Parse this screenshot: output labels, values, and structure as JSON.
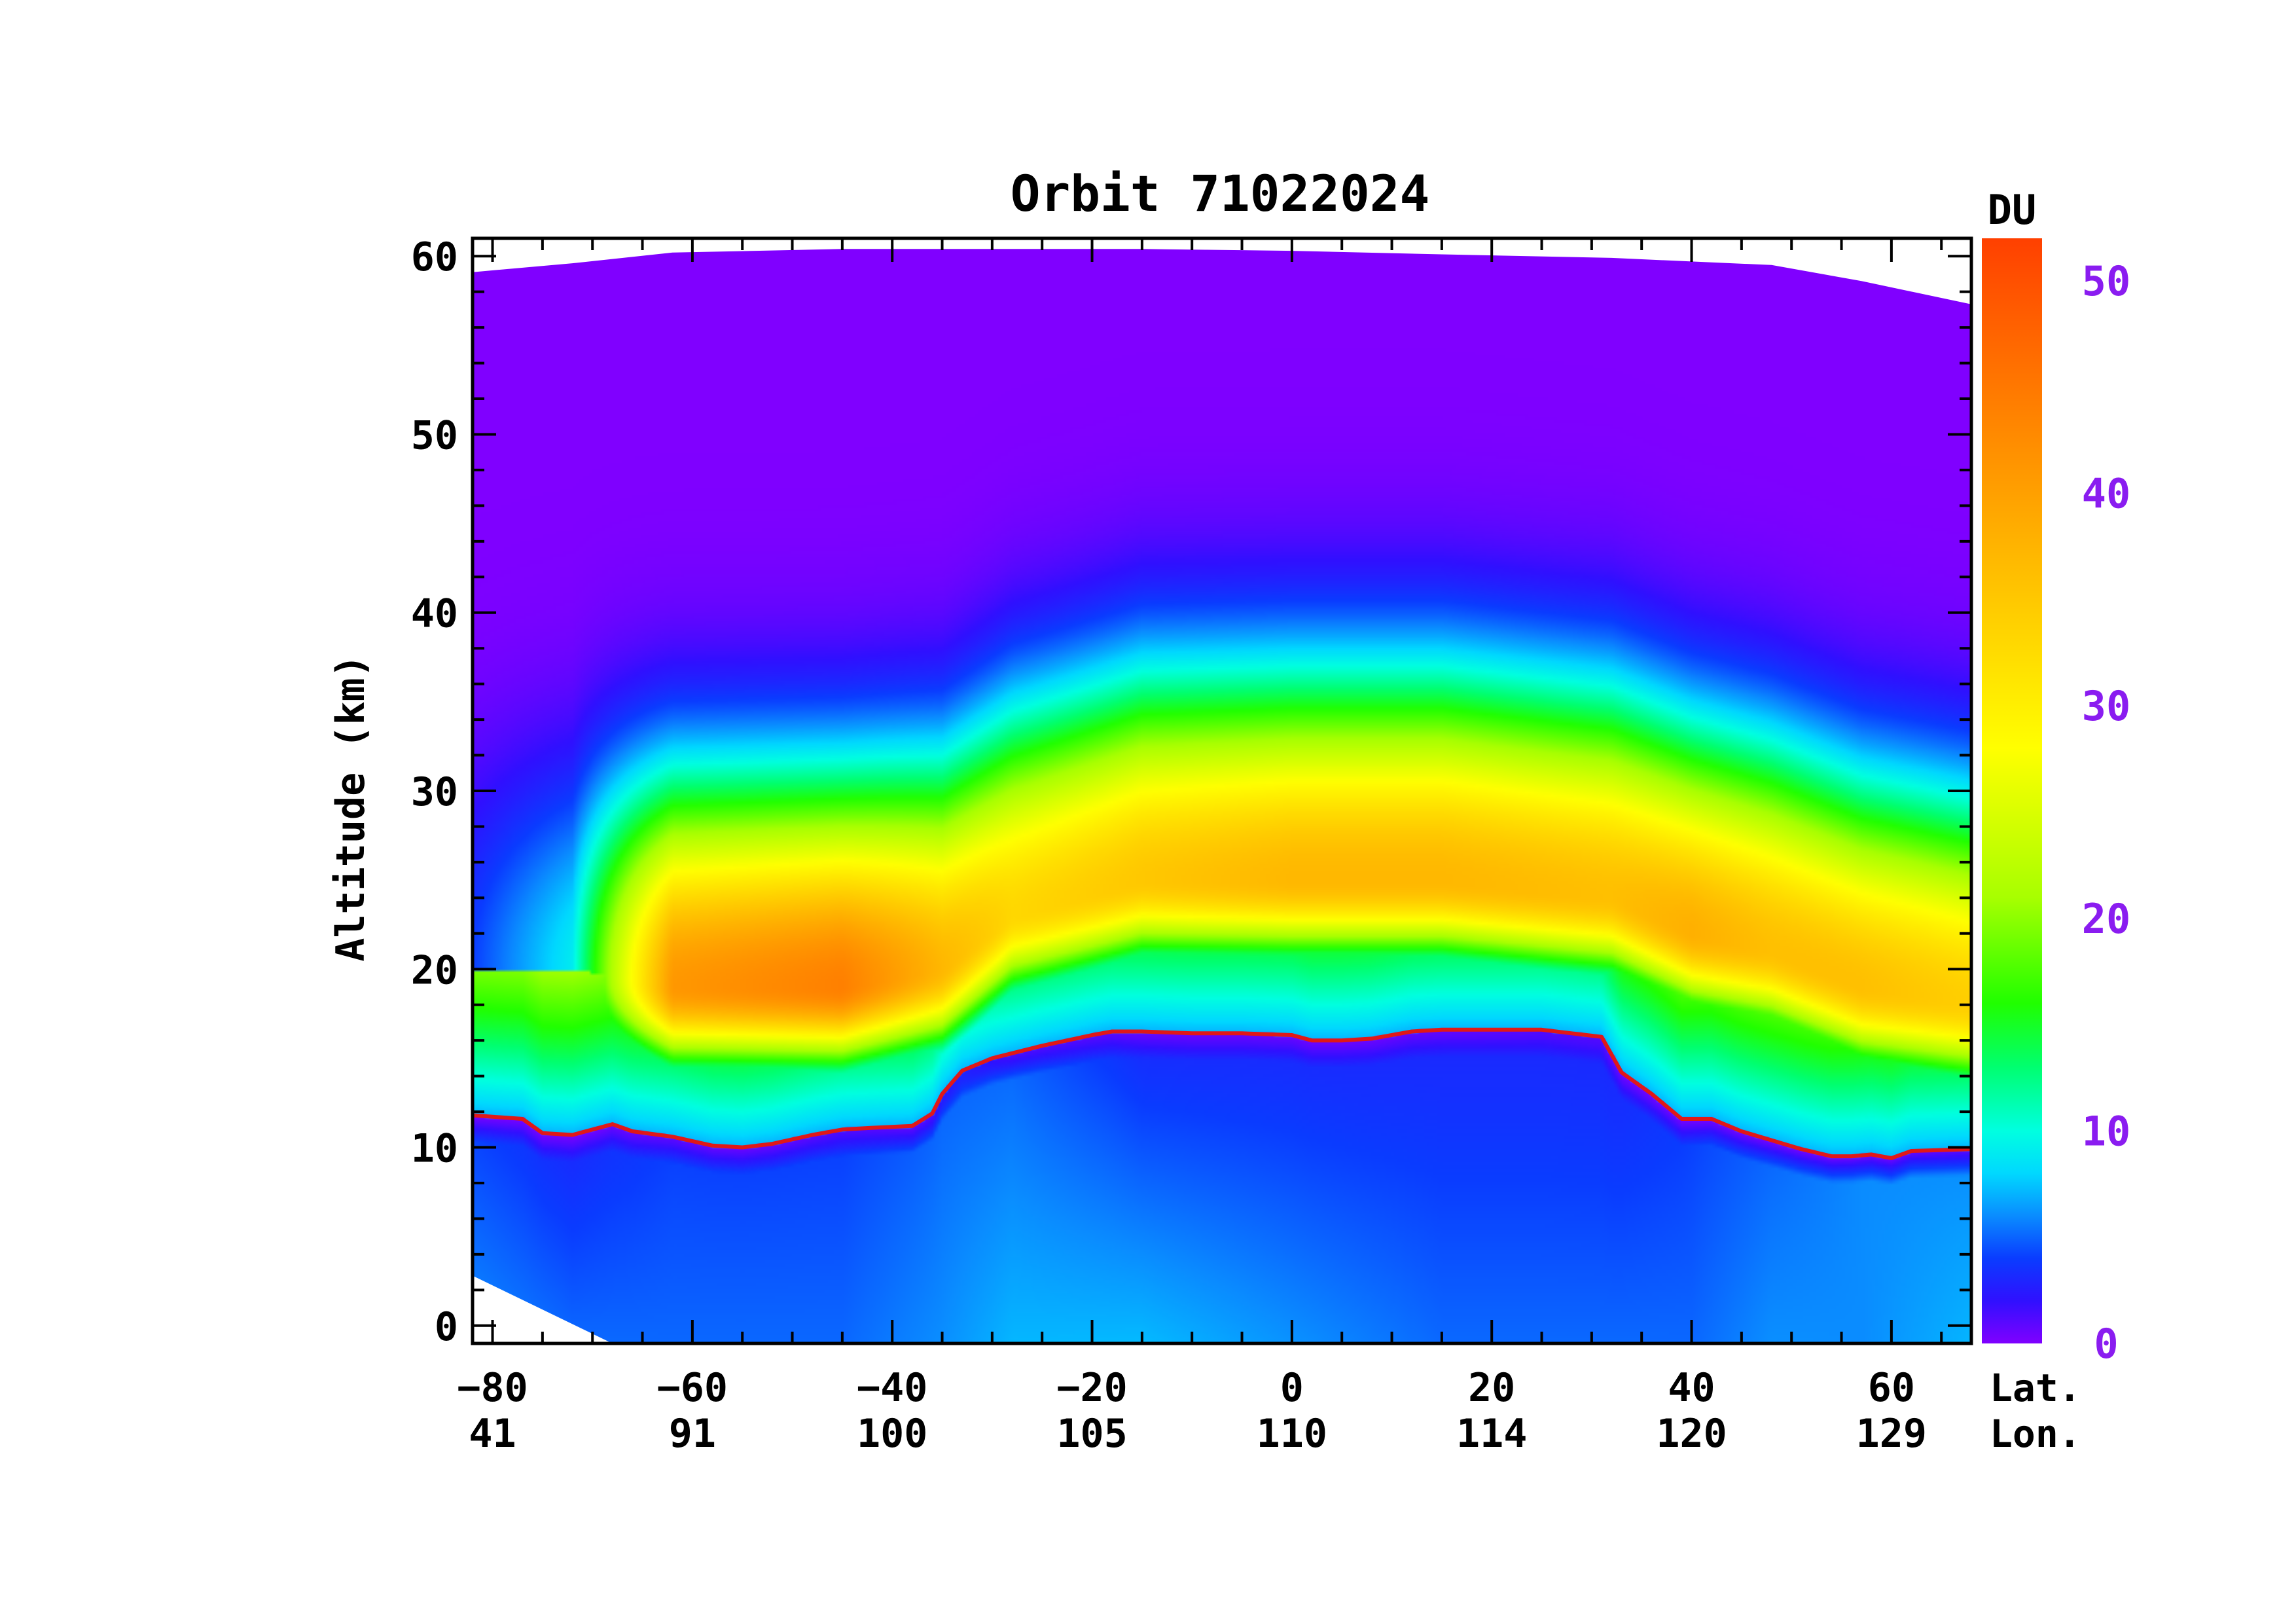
{
  "chart_data": {
    "type": "heatmap",
    "title": "Orbit 71022024",
    "ylabel": "Altitude (km)",
    "xlim": [
      -82,
      68
    ],
    "ylim": [
      -1,
      61
    ],
    "x_ticks": [
      -80,
      -60,
      -40,
      -20,
      0,
      20,
      40,
      60
    ],
    "y_ticks": [
      0,
      10,
      20,
      30,
      40,
      50,
      60
    ],
    "x_row1_label": "Lat.",
    "x_row2_label": "Lon.",
    "lat_tick_labels": [
      "−80",
      "−60",
      "−40",
      "−20",
      "0",
      "20",
      "40",
      "60"
    ],
    "lon_tick_labels": [
      "41",
      "91",
      "100",
      "105",
      "110",
      "114",
      "120",
      "129"
    ],
    "y_tick_labels": [
      "0",
      "10",
      "20",
      "30",
      "40",
      "50",
      "60"
    ],
    "grid": false,
    "colorbar": {
      "label": "DU",
      "label_color": "#000000",
      "tick_color": "#8a1cf0",
      "ticks": [
        {
          "value": 0,
          "label": "0"
        },
        {
          "value": 10,
          "label": "10"
        },
        {
          "value": 20,
          "label": "20"
        },
        {
          "value": 30,
          "label": "30"
        },
        {
          "value": 40,
          "label": "40"
        },
        {
          "value": 50,
          "label": "50"
        }
      ],
      "range": [
        0,
        52
      ],
      "stops": [
        {
          "v": 0,
          "color": "#8000ff"
        },
        {
          "v": 2,
          "color": "#3010ff"
        },
        {
          "v": 4,
          "color": "#0a3cff"
        },
        {
          "v": 6,
          "color": "#0a8cff"
        },
        {
          "v": 8,
          "color": "#00d8ff"
        },
        {
          "v": 10,
          "color": "#00ffe0"
        },
        {
          "v": 13,
          "color": "#00ff70"
        },
        {
          "v": 16,
          "color": "#20ff00"
        },
        {
          "v": 21,
          "color": "#a8ff00"
        },
        {
          "v": 28,
          "color": "#ffff00"
        },
        {
          "v": 36,
          "color": "#ffc000"
        },
        {
          "v": 44,
          "color": "#ff8000"
        },
        {
          "v": 52,
          "color": "#ff4000"
        }
      ]
    },
    "field_profile_latitudes": [
      -82,
      -72,
      -62,
      -45,
      -35,
      -28,
      -15,
      0,
      15,
      32,
      40,
      48,
      57,
      68
    ],
    "field_profiles": [
      {
        "peak_alt": 20,
        "peak_du": 4,
        "low_du": 6,
        "trop_du": 4,
        "top_alt": 59.1
      },
      {
        "peak_alt": 20,
        "peak_du": 9,
        "low_du": 5,
        "trop_du": 3,
        "top_alt": 59.6
      },
      {
        "peak_alt": 19,
        "peak_du": 41,
        "low_du": 5,
        "trop_du": 4,
        "top_alt": 60.2
      },
      {
        "peak_alt": 19,
        "peak_du": 44,
        "low_du": 5,
        "trop_du": 4,
        "top_alt": 60.4
      },
      {
        "peak_alt": 20,
        "peak_du": 37,
        "low_du": 6,
        "trop_du": 5,
        "top_alt": 60.4
      },
      {
        "peak_alt": 23,
        "peak_du": 33,
        "low_du": 7,
        "trop_du": 5,
        "top_alt": 60.4
      },
      {
        "peak_alt": 25,
        "peak_du": 35,
        "low_du": 7,
        "trop_du": 3,
        "top_alt": 60.4
      },
      {
        "peak_alt": 25,
        "peak_du": 37,
        "low_du": 6,
        "trop_du": 3,
        "top_alt": 60.3
      },
      {
        "peak_alt": 25,
        "peak_du": 37,
        "low_du": 5,
        "trop_du": 3,
        "top_alt": 60.1
      },
      {
        "peak_alt": 24,
        "peak_du": 36,
        "low_du": 5,
        "trop_du": 3,
        "top_alt": 59.9
      },
      {
        "peak_alt": 22,
        "peak_du": 38,
        "low_du": 5,
        "trop_du": 4,
        "top_alt": 59.7
      },
      {
        "peak_alt": 21,
        "peak_du": 36,
        "low_du": 6,
        "trop_du": 5,
        "top_alt": 59.5
      },
      {
        "peak_alt": 19,
        "peak_du": 36,
        "low_du": 6,
        "trop_du": 6,
        "top_alt": 58.6
      },
      {
        "peak_alt": 18,
        "peak_du": 34,
        "low_du": 7,
        "trop_du": 6,
        "top_alt": 57.3
      }
    ],
    "bottom_boundary": {
      "x": [
        -82,
        -68,
        68
      ],
      "y": [
        2.8,
        -1,
        -1
      ]
    },
    "series": [
      {
        "x": [
          -82,
          -77,
          -75,
          -72,
          -68,
          -66,
          -62,
          -58,
          -55,
          -52,
          -48,
          -45,
          -42,
          -38,
          -36,
          -35,
          -33,
          -30,
          -25,
          -20,
          -18,
          -15,
          -10,
          -5,
          0,
          2,
          5,
          8,
          12,
          15,
          20,
          25,
          28,
          31,
          33,
          36,
          39,
          42,
          45,
          48,
          51,
          54,
          56,
          58,
          60,
          62,
          68
        ],
        "y": [
          11.8,
          11.6,
          10.8,
          10.7,
          11.3,
          10.9,
          10.6,
          10.1,
          10.0,
          10.2,
          10.7,
          11.0,
          11.1,
          11.2,
          11.9,
          13.0,
          14.3,
          15.0,
          15.7,
          16.3,
          16.5,
          16.5,
          16.4,
          16.4,
          16.3,
          16.0,
          16.0,
          16.1,
          16.5,
          16.6,
          16.6,
          16.6,
          16.4,
          16.2,
          14.2,
          13.0,
          11.6,
          11.6,
          10.9,
          10.4,
          9.9,
          9.5,
          9.5,
          9.6,
          9.4,
          9.8,
          9.9
        ]
      }
    ],
    "tropopause_color": "#e01818"
  }
}
